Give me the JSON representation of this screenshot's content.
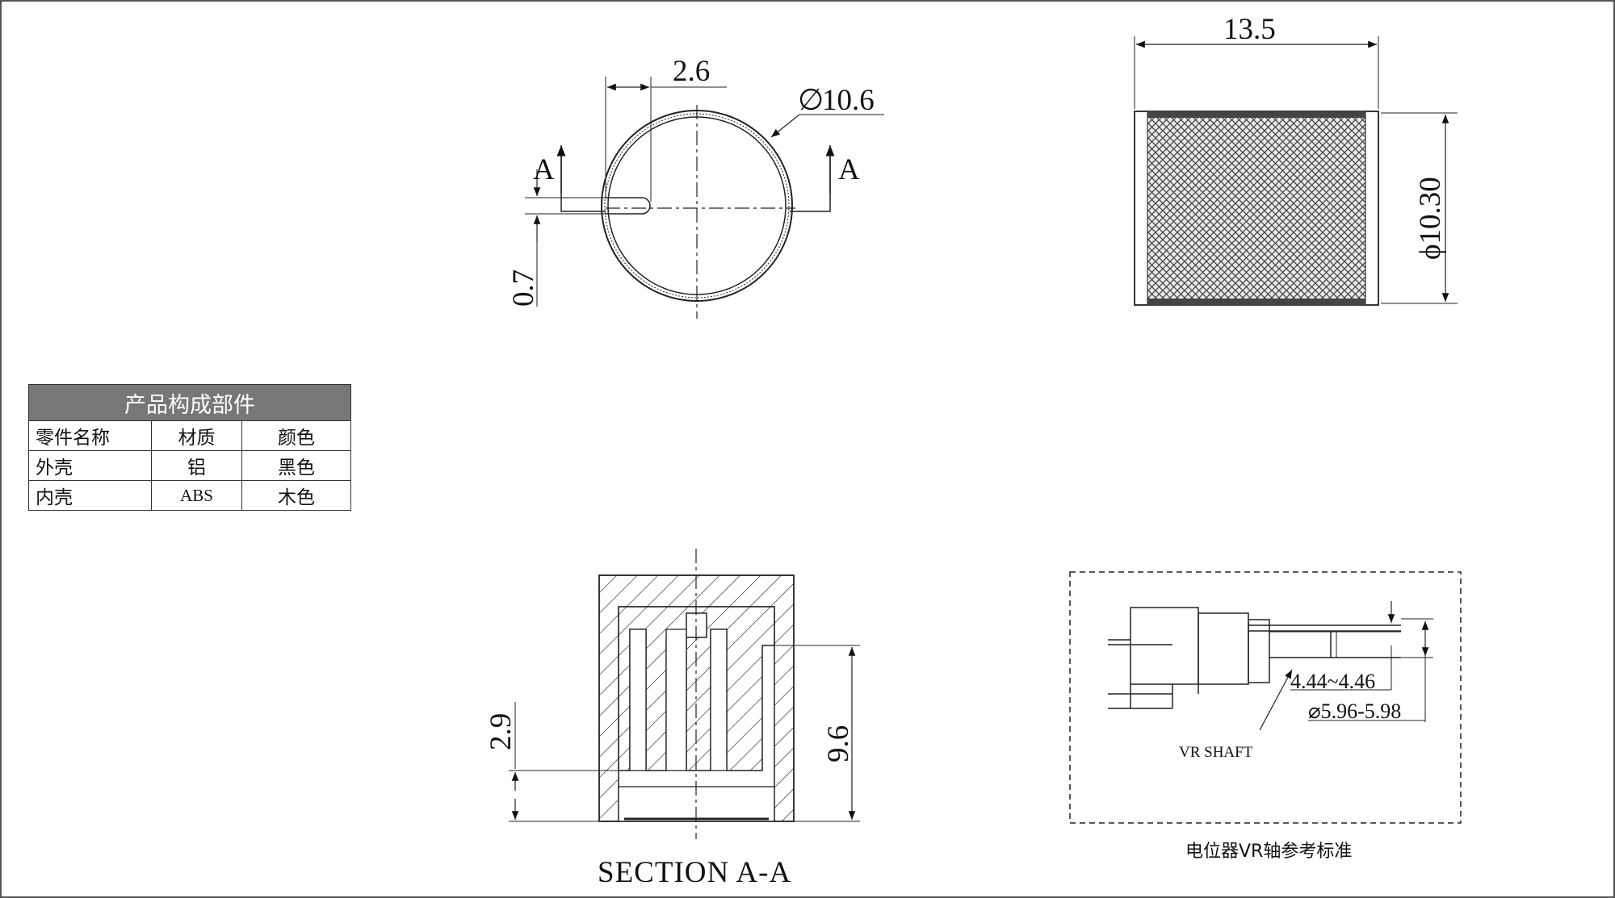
{
  "top_view": {
    "dim_groove_width": "2.6",
    "dim_outer_diameter": "10.6",
    "diameter_symbol": "∅",
    "dim_groove_depth": "0.7",
    "section_marker_left": "A",
    "section_marker_right": "A"
  },
  "side_view": {
    "dim_length": "13.5",
    "dim_diameter": "ϕ10.30"
  },
  "section_view": {
    "dim_shaft_depth": "2.9",
    "dim_inner_height": "9.6",
    "caption": "SECTION A-A"
  },
  "shaft_reference": {
    "dim_flat": "4.44~4.46",
    "dim_diameter": "⌀5.96-5.98",
    "shaft_label": "VR SHAFT",
    "caption": "电位器VR轴参考标准"
  },
  "bom_table": {
    "title": "产品构成部件",
    "headers": [
      "零件名称",
      "材质",
      "颜色"
    ],
    "rows": [
      [
        "外壳",
        "铝",
        "黑色"
      ],
      [
        "内壳",
        "ABS",
        "木色"
      ]
    ]
  },
  "colors": {
    "line": "#222222",
    "table_header_bg": "#777777",
    "knurl": "#555555"
  }
}
